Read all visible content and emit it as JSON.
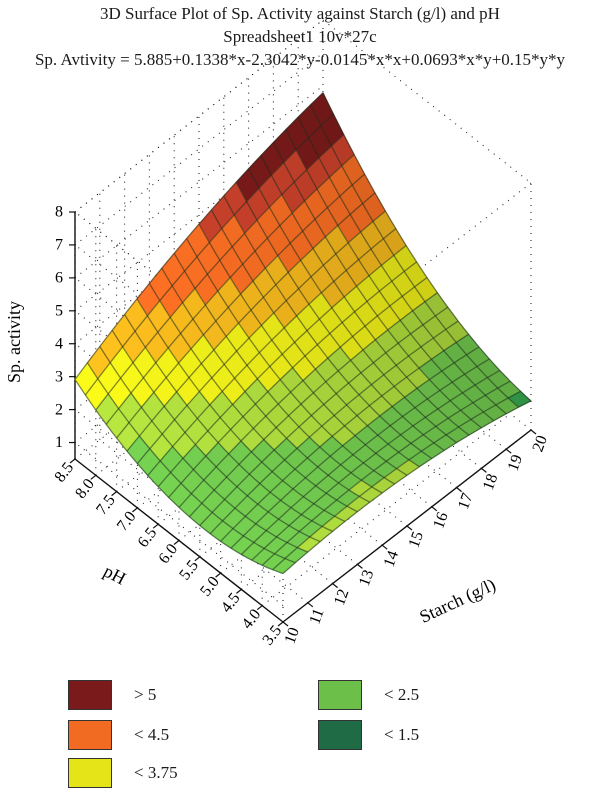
{
  "title": {
    "line1": "3D Surface Plot of Sp. Activity against Starch (g/l) and pH",
    "line2": "Spreadsheet1 10v*27c",
    "line3": "Sp. Avtivity = 5.885+0.1338*x-2.3042*y-0.0145*x*x+0.0693*x*y+0.15*y*y"
  },
  "chart_data": {
    "type": "surface3d",
    "equation": {
      "intercept": 5.885,
      "x": 0.1338,
      "y": -2.3042,
      "xx": -0.0145,
      "xy": 0.0693,
      "yy": 0.15
    },
    "x_axis": {
      "label": "Starch (g/l)",
      "range": [
        10,
        20
      ],
      "ticks": [
        "10",
        "11",
        "12",
        "13",
        "14",
        "15",
        "16",
        "17",
        "18",
        "19",
        "20"
      ]
    },
    "y_axis": {
      "label": "pH",
      "range": [
        3.5,
        8.5
      ],
      "ticks": [
        "3.5",
        "4.0",
        "4.5",
        "5.0",
        "5.5",
        "6.0",
        "6.5",
        "7.0",
        "7.5",
        "8.0",
        "8.5"
      ]
    },
    "z_axis": {
      "label": "Sp. activity",
      "range": [
        0.5,
        8
      ],
      "ticks": [
        "1",
        "2",
        "3",
        "4",
        "5",
        "6",
        "7",
        "8"
      ]
    },
    "legend": [
      {
        "label": "> 5",
        "color": "#7a1a1a"
      },
      {
        "label": "< 4.5",
        "color": "#f26b22"
      },
      {
        "label": "< 3.75",
        "color": "#e4e418"
      },
      {
        "label": "< 2.5",
        "color": "#6cc04a"
      },
      {
        "label": "< 1.5",
        "color": "#1e6b45"
      }
    ],
    "grid": true
  }
}
